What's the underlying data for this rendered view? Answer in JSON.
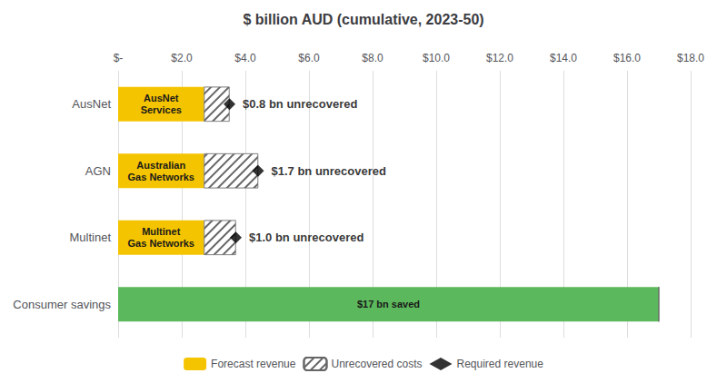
{
  "chart_data": {
    "type": "bar",
    "orientation": "horizontal",
    "stacked": true,
    "title": "$ billion AUD (cumulative, 2023-50)",
    "categories": [
      "AusNet",
      "AGN",
      "Multinet",
      "Consumer savings"
    ],
    "series": [
      {
        "name": "Forecast revenue",
        "type": "bar",
        "color": "#F5C400",
        "colors": [
          "#F5C400",
          "#F5C400",
          "#F5C400",
          "#5CB85C"
        ],
        "values": [
          2.7,
          2.7,
          2.7,
          17.0
        ],
        "annotations": [
          "AusNet\nServices",
          "Australian\nGas Networks",
          "Multinet\nGas Networks",
          "$17 bn saved"
        ]
      },
      {
        "name": "Unrecovered costs",
        "type": "bar",
        "color": "#666666",
        "values": [
          0.8,
          1.7,
          1.0,
          0.0
        ]
      },
      {
        "name": "Required revenue",
        "type": "scatter",
        "marker": "diamond",
        "color": "#000000",
        "values": [
          3.5,
          4.4,
          3.7,
          null
        ],
        "annotations": [
          "$0.8 bn unrecovered",
          "$1.7 bn unrecovered",
          "$1.0 bn unrecovered",
          null
        ]
      }
    ],
    "xlim": [
      0,
      18
    ],
    "xticks": [
      {
        "value": 0,
        "label": "$-"
      },
      {
        "value": 2,
        "label": "$2.0"
      },
      {
        "value": 4,
        "label": "$4.0"
      },
      {
        "value": 6,
        "label": "$6.0"
      },
      {
        "value": 8,
        "label": "$8.0"
      },
      {
        "value": 10,
        "label": "$10.0"
      },
      {
        "value": 12,
        "label": "$12.0"
      },
      {
        "value": 14,
        "label": "$14.0"
      },
      {
        "value": 16,
        "label": "$16.0"
      },
      {
        "value": 18,
        "label": "$18.0"
      }
    ],
    "grid": true,
    "legend": "bottom"
  }
}
